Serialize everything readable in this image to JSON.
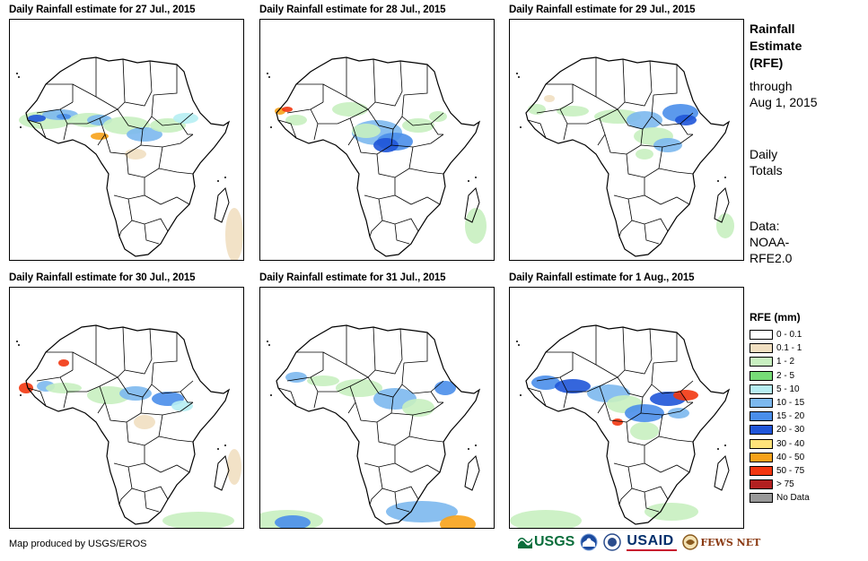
{
  "panels": [
    {
      "title": "Daily Rainfall estimate for 27 Jul., 2015"
    },
    {
      "title": "Daily Rainfall estimate for 28 Jul., 2015"
    },
    {
      "title": "Daily Rainfall estimate for 29 Jul., 2015"
    },
    {
      "title": "Daily Rainfall estimate for 30 Jul., 2015"
    },
    {
      "title": "Daily Rainfall estimate for 31 Jul., 2015"
    },
    {
      "title": "Daily Rainfall estimate for 1 Aug., 2015"
    }
  ],
  "side": {
    "title_lines": [
      "Rainfall",
      "Estimate",
      "(RFE)"
    ],
    "through_lines": [
      "through",
      "Aug 1, 2015"
    ],
    "totals_lines": [
      "Daily",
      "Totals"
    ],
    "data_lines": [
      "Data:",
      "NOAA-",
      "RFE2.0"
    ]
  },
  "legend": {
    "title": "RFE (mm)",
    "items": [
      {
        "label": "0 - 0.1",
        "color": "#ffffff"
      },
      {
        "label": "0.1 - 1",
        "color": "#f1dfc1"
      },
      {
        "label": "1 - 2",
        "color": "#c8f0c0"
      },
      {
        "label": "2 - 5",
        "color": "#77dc77"
      },
      {
        "label": "5 - 10",
        "color": "#b6eef3"
      },
      {
        "label": "10 - 15",
        "color": "#7cb8ee"
      },
      {
        "label": "15 - 20",
        "color": "#4a8eea"
      },
      {
        "label": "20 - 30",
        "color": "#1f55d8"
      },
      {
        "label": "30 - 40",
        "color": "#ffe37a"
      },
      {
        "label": "40 - 50",
        "color": "#f7a21a"
      },
      {
        "label": "50 - 75",
        "color": "#f2360f"
      },
      {
        "label": "> 75",
        "color": "#b22020"
      },
      {
        "label": "No Data",
        "color": "#999999"
      }
    ]
  },
  "footer": "Map produced by USGS/EROS",
  "logos": {
    "usgs": "USGS",
    "noaa": "NOAA",
    "usaid": "USAID",
    "fewsnet": "FEWS NET"
  }
}
